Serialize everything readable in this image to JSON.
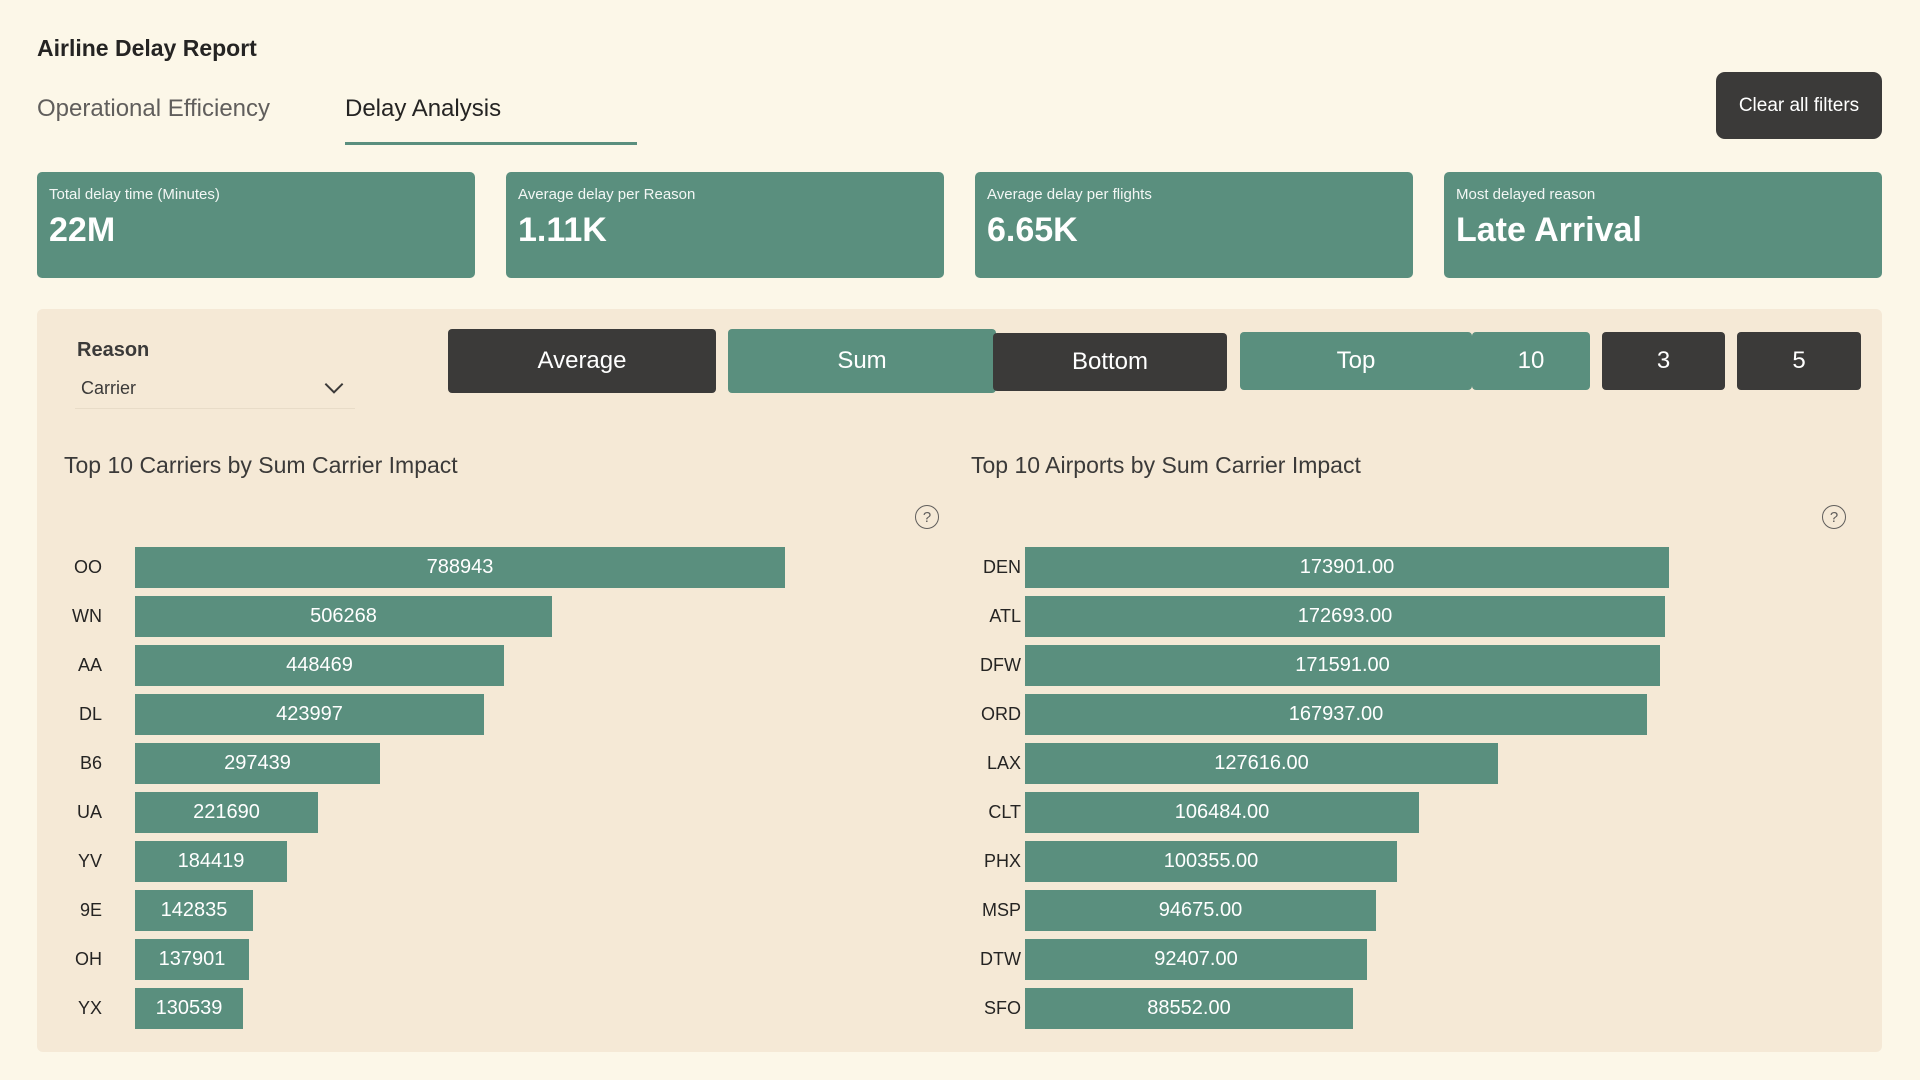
{
  "app": {
    "title": "Airline Delay Report"
  },
  "tabs": [
    {
      "label": "Operational Efficiency",
      "active": false
    },
    {
      "label": "Delay Analysis",
      "active": true
    }
  ],
  "toolbar": {
    "clear_filters_label": "Clear all filters"
  },
  "kpis": [
    {
      "label": "Total delay time (Minutes)",
      "value": "22M"
    },
    {
      "label": "Average delay per Reason",
      "value": "1.11K"
    },
    {
      "label": "Average delay per flights",
      "value": "6.65K"
    },
    {
      "label": "Most delayed reason",
      "value": "Late Arrival"
    }
  ],
  "filters": {
    "reason_label": "Reason",
    "reason_selected": "Carrier",
    "aggregation_buttons": [
      {
        "label": "Average",
        "selected": false
      },
      {
        "label": "Sum",
        "selected": true
      }
    ],
    "rank_buttons": [
      {
        "label": "Bottom",
        "selected": false
      },
      {
        "label": "Top",
        "selected": true
      }
    ],
    "count_buttons": [
      {
        "label": "10",
        "selected": true
      },
      {
        "label": "3",
        "selected": false
      },
      {
        "label": "5",
        "selected": false
      }
    ]
  },
  "colors": {
    "accent": "#5a8f7e",
    "dark_button": "#3b3a39",
    "background": "#fcf7e8",
    "panel": "#f5e9d6"
  },
  "icons": {
    "dropdown": "chevron-down-icon",
    "help": "help-icon"
  },
  "help_glyph": "?",
  "chart_data": [
    {
      "type": "bar",
      "orientation": "horizontal",
      "title": "Top 10 Carriers by Sum Carrier Impact",
      "categories": [
        "OO",
        "WN",
        "AA",
        "DL",
        "B6",
        "UA",
        "YV",
        "9E",
        "OH",
        "YX"
      ],
      "values": [
        788943,
        506268,
        448469,
        423997,
        297439,
        221690,
        184419,
        142835,
        137901,
        130539
      ],
      "value_labels": [
        "788943",
        "506268",
        "448469",
        "423997",
        "297439",
        "221690",
        "184419",
        "142835",
        "137901",
        "130539"
      ],
      "xlim": [
        0,
        788943
      ]
    },
    {
      "type": "bar",
      "orientation": "horizontal",
      "title": "Top 10 Airports by Sum Carrier Impact",
      "categories": [
        "DEN",
        "ATL",
        "DFW",
        "ORD",
        "LAX",
        "CLT",
        "PHX",
        "MSP",
        "DTW",
        "SFO"
      ],
      "values": [
        173901.0,
        172693.0,
        171591.0,
        167937.0,
        127616.0,
        106484.0,
        100355.0,
        94675.0,
        92407.0,
        88552.0
      ],
      "value_labels": [
        "173901.00",
        "172693.00",
        "171591.00",
        "167937.00",
        "127616.00",
        "106484.00",
        "100355.00",
        "94675.00",
        "92407.00",
        "88552.00"
      ],
      "xlim": [
        0,
        173901.0
      ]
    }
  ]
}
